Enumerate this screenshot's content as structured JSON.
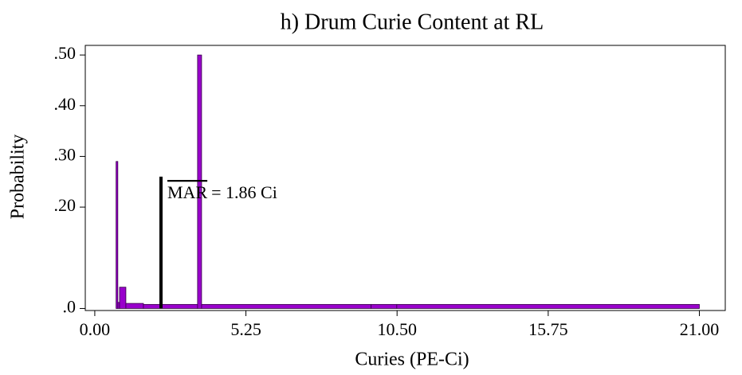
{
  "chart_data": {
    "type": "histogram",
    "title": "h) Drum Curie Content at RL",
    "x_label": "Curies (PE-Ci)",
    "y_label": "Probability",
    "bins": [
      0.74,
      0.8,
      0.86,
      1.08,
      1.69,
      3.57,
      3.71,
      9.6,
      10.49,
      21.0
    ],
    "values": [
      0.29,
      0.012,
      0.042,
      0.01,
      0.008,
      0.5,
      0.008,
      0.008,
      0.008
    ],
    "color": "#9900cc",
    "xlim": [
      -0.33,
      21.9
    ],
    "ylim": [
      -0.004,
      0.519
    ],
    "xticks": [
      {
        "value": 0,
        "label": "0.00"
      },
      5.25,
      {
        "value": 10.5,
        "label": "10.50"
      },
      15.75,
      {
        "value": 21,
        "label": "21.00"
      }
    ],
    "yticks": [
      {
        "value": 0,
        "label": ".0"
      },
      {
        "value": 0.2,
        "label": ".20"
      },
      {
        "value": 0.3,
        "label": ".30"
      },
      {
        "value": 0.4,
        "label": ".40"
      },
      {
        "value": 0.5,
        "label": ".50"
      }
    ],
    "marker": {
      "x": 2.3,
      "y": 0.26,
      "color": "#000000",
      "label_mark": "MAR",
      "label_text": "= 1.86 Ci"
    }
  }
}
